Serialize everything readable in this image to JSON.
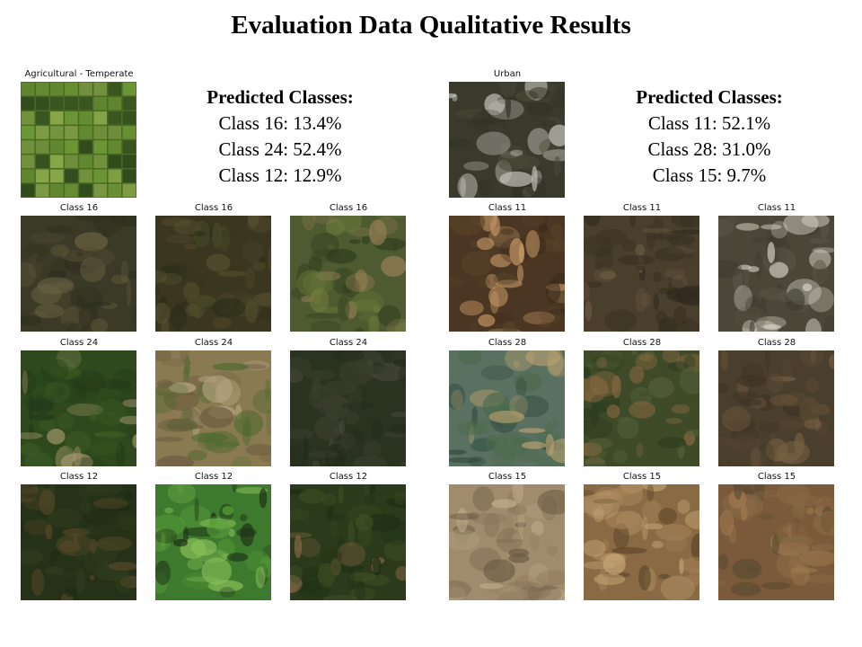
{
  "title": "Evaluation Data Qualitative Results",
  "panels": [
    {
      "query": {
        "label": "Agricultural - Temperate",
        "colors": {
          "base": "#4a6a28",
          "a": "#6f9a36",
          "b": "#2f4a1c",
          "c": "#8aa84a"
        }
      },
      "predicted": {
        "heading": "Predicted Classes:",
        "lines": [
          "Class 16: 13.4%",
          "Class 24: 52.4%",
          "Class 12: 12.9%"
        ]
      },
      "rows": [
        {
          "label": "Class 16",
          "tiles": [
            {
              "base": "#3b3a26",
              "a": "#4d4a32",
              "b": "#2e2e1f",
              "c": "#6a6242"
            },
            {
              "base": "#3a3620",
              "a": "#2b2e18",
              "b": "#5a5030",
              "c": "#4a4a2a"
            },
            {
              "base": "#4e5a30",
              "a": "#2e3e1e",
              "b": "#9a8058",
              "c": "#6a7a3a"
            }
          ]
        },
        {
          "label": "Class 24",
          "tiles": [
            {
              "base": "#2e4a1c",
              "a": "#3c5a24",
              "b": "#a89870",
              "c": "#24381a"
            },
            {
              "base": "#8a7a52",
              "a": "#4e6a2e",
              "b": "#b8a884",
              "c": "#6a5a3e"
            },
            {
              "base": "#2a3220",
              "a": "#3a3e2c",
              "b": "#222a1a",
              "c": "#48483a"
            }
          ]
        },
        {
          "label": "Class 12",
          "tiles": [
            {
              "base": "#263218",
              "a": "#303e1e",
              "b": "#5a4a2a",
              "c": "#1e2a14"
            },
            {
              "base": "#3e7a2e",
              "a": "#5aa03a",
              "b": "#1a2a14",
              "c": "#8ac05a"
            },
            {
              "base": "#2a3a1a",
              "a": "#1e2e14",
              "b": "#8a6a4a",
              "c": "#3e4e24"
            }
          ]
        }
      ]
    },
    {
      "query": {
        "label": "Urban",
        "colors": {
          "base": "#3a3a2c",
          "a": "#4a4a3a",
          "b": "#c8c8c0",
          "c": "#2e2e22"
        }
      },
      "predicted": {
        "heading": "Predicted Classes:",
        "lines": [
          "Class 11: 52.1%",
          "Class 28: 31.0%",
          "Class 15: 9.7%"
        ]
      },
      "rows": [
        {
          "label": "Class 11",
          "tiles": [
            {
              "base": "#4a3622",
              "a": "#5a442a",
              "b": "#c89a6a",
              "c": "#3a2a1a"
            },
            {
              "base": "#4a3e2c",
              "a": "#3a3022",
              "b": "#6a5a40",
              "c": "#2e2a1e"
            },
            {
              "base": "#4a4638",
              "a": "#5a5648",
              "b": "#d8d4c8",
              "c": "#3a382c"
            }
          ]
        },
        {
          "label": "Class 28",
          "tiles": [
            {
              "base": "#5a7060",
              "a": "#2e4a3e",
              "b": "#b8a070",
              "c": "#4a6a4a"
            },
            {
              "base": "#3e4a28",
              "a": "#2a3a1e",
              "b": "#8a6a42",
              "c": "#56603a"
            },
            {
              "base": "#4a3e2c",
              "a": "#3e3424",
              "b": "#7a6244",
              "c": "#5a4a34"
            }
          ]
        },
        {
          "label": "Class 15",
          "tiles": [
            {
              "base": "#a08c6c",
              "a": "#8a765a",
              "b": "#c0ac8a",
              "c": "#6a5a44"
            },
            {
              "base": "#8a6a44",
              "a": "#a8865a",
              "b": "#5a4428",
              "c": "#c8a878"
            },
            {
              "base": "#7a5a3a",
              "a": "#8a6a48",
              "b": "#5a4a30",
              "c": "#a07a50"
            }
          ]
        }
      ]
    }
  ]
}
